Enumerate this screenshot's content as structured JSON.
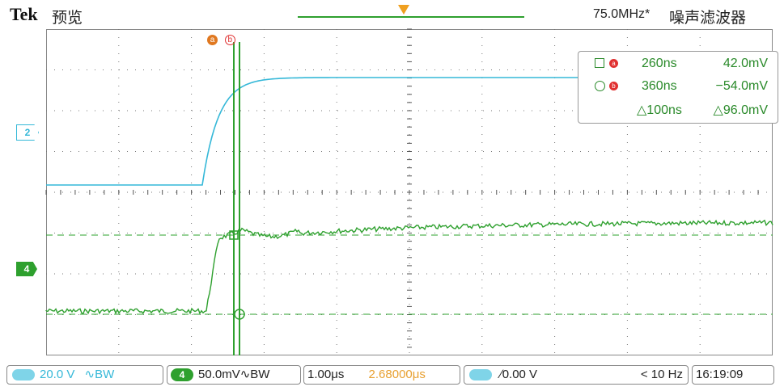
{
  "header": {
    "brand": "Tek",
    "mode": "预览",
    "bandwidth": "75.0MHz*",
    "filter": "噪声滤波器"
  },
  "channels": {
    "ch2_marker": "2",
    "ch4_marker": "4"
  },
  "cursors": {
    "label_a": "a",
    "label_b": "b",
    "rows": [
      {
        "time": "260ns",
        "value": "42.0mV"
      },
      {
        "time": "360ns",
        "value": "−54.0mV"
      },
      {
        "time": "△100ns",
        "value": "△96.0mV"
      }
    ]
  },
  "status": {
    "ch2_scale": "20.0 V",
    "ch2_coupling": "∿BW",
    "ch4_id": "4",
    "ch4_scale": "50.0mV∿BW",
    "timebase": "1.00",
    "timebase_unit": "μs",
    "horizontal_pos": "2.68000",
    "horizontal_pos_unit": "μs",
    "trigger_level": "0.00 V",
    "trigger_freq": "< 10 Hz",
    "clock": "16:19:09"
  },
  "colors": {
    "ch2": "#35b8d8",
    "ch4": "#2ea02e",
    "trigger": "#f0a020"
  },
  "icons": {
    "trigger_slope": "rising-edge-icon",
    "cursor_square": "square-marker-icon",
    "cursor_circle": "circle-marker-icon"
  }
}
